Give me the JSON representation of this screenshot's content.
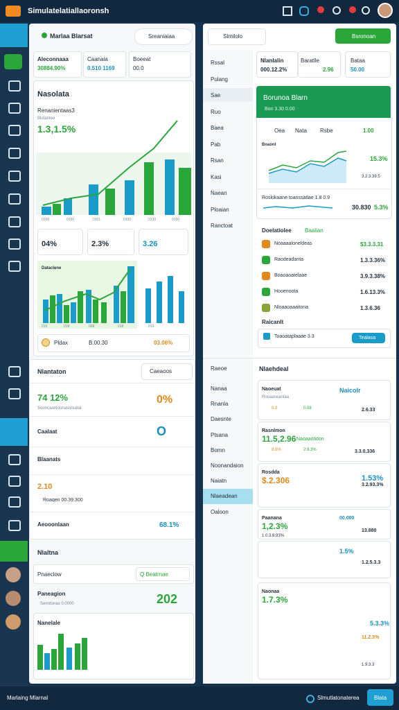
{
  "header": {
    "title": "Simulatelatiallaoronsh"
  },
  "left_panel": {
    "tab": "Marlaa Blarsat",
    "search": "Sreaniaiaa",
    "stats": [
      {
        "label": "Aleconnaaa",
        "value": "30884.90%"
      },
      {
        "label": "Caanaia",
        "value": "0.510 1169"
      },
      {
        "label": "Boeeat",
        "value": "00.0"
      }
    ],
    "chart_card": {
      "title": "Nasolata",
      "subtitle": "Renanientaas3",
      "note": "Blotantee",
      "value": "1.3,1.5%",
      "axis": [
        "0100",
        "0100",
        "0101",
        "0100",
        "0130",
        "0100"
      ]
    },
    "mini_stats": [
      "04%",
      "2.3%",
      "3.26"
    ],
    "combo_card": {
      "title": "Dataclene",
      "axis": [
        "010",
        "018",
        "008",
        "018",
        "019"
      ]
    },
    "ticker": {
      "label": "Pldax",
      "value": "B.00.30",
      "change": "03.06%"
    },
    "section": {
      "title": "Nlantaton",
      "select": "Caeaoos",
      "items": [
        {
          "title": "74 12%",
          "subtitle": "Sooncaantoonasoreatai",
          "badge": "0%"
        },
        {
          "title": "Caalaat",
          "badge": "O"
        },
        {
          "title": "Blaanats"
        },
        {
          "title": "2.10",
          "subtitle": "Roaqen 00.39.300"
        },
        {
          "title": "Aeooonlaan",
          "badge": "68.1%"
        }
      ]
    },
    "section2": {
      "title": "Nlaltna",
      "card_title": "Pnaeclow",
      "select": "Q Beatrnae",
      "row_title": "Paneagion",
      "row_subtitle": "Senntonas 0.0000",
      "row_value": "202",
      "chart_title": "Nanelale"
    }
  },
  "right_panel": {
    "search": "Slmilolo",
    "button": "Bsronoan",
    "nav": [
      "Rssal",
      "Pulang",
      "Sae",
      "Ruo",
      "Baea",
      "Pab",
      "Rsan",
      "Kasi",
      "Naean",
      "Ploaian",
      "Ranctoat"
    ],
    "stats": [
      {
        "label": "Nlanlalin",
        "value": "000.12.2%"
      },
      {
        "label": "Baratlle",
        "value": "2.96"
      },
      {
        "label": "Bataa",
        "value": "50.00"
      }
    ],
    "hero": {
      "title": "Borunoa Blarn",
      "subtitle": "Bon 3.30 0.00",
      "tabs": [
        "Oea",
        "Nata",
        "Rsbe"
      ],
      "tab_value": "1.00",
      "chart_title": "Boaonl",
      "chart_value": "15.3%",
      "chart_sub": "3.2.3.39.5",
      "legend": "Roslokaane toanssatlae 1.8 0.9",
      "total": "30.830",
      "total_change": "5.3%"
    },
    "list": {
      "title": "Doelatiolee",
      "tag": "Baalian",
      "rows": [
        {
          "label": "Noaaaaloneldeas",
          "value": "$3.3.3.31"
        },
        {
          "label": "Raodeadanta",
          "value": "1.3.3.36%"
        },
        {
          "label": "Boaoaoatelaae",
          "value": "3.9.3.38%"
        },
        {
          "label": "Hooenoota",
          "value": "1.6.13.3%"
        },
        {
          "label": "Nloaaoaaaitona",
          "value": "1.3.6.36"
        }
      ]
    },
    "action": {
      "title": "Raicanlt",
      "label": "Toaoataplaaae 3.3",
      "button": "Tealasa"
    },
    "nav2": {
      "title": "Raeoe",
      "items": [
        "Nanaa",
        "Rnanla",
        "Daesnte",
        "Ptsana",
        "Bomn",
        "Noonandaion",
        "Naiatn",
        "Nlaeadean",
        "Oaloon"
      ]
    },
    "section": {
      "title": "Nlaehdeal",
      "cards": [
        {
          "title": "Naoeuat",
          "subtitle": "Rooaaseantaa",
          "a": "0.3",
          "b": "0.08",
          "side": "Naicolr",
          "side_value": "2.6.33"
        },
        {
          "title": "Rasnlmon",
          "value": "11.5,2.96",
          "tag": "Naoaaotidon",
          "a": "8.0%",
          "b": "2.9.3%",
          "side_value": "3.3.0.336"
        },
        {
          "title": "Rosdda",
          "value": "$.2.306",
          "side_value": "1.53%",
          "side_sub": "3.2.93.3%"
        },
        {
          "title": "Paanana",
          "value": "1,2.3%",
          "sub": "1.0.3.8.93%",
          "side": "00.000",
          "side_sub": "13.880"
        },
        {
          "side": "1.5%",
          "side_sub": "1.2.5.3.3"
        },
        {
          "title": "Naonaa",
          "value": "1.7.3%",
          "side": "5.3.3%",
          "side_sub": "11.2.3%",
          "foot": "1.9.3.3"
        }
      ]
    }
  },
  "footer": {
    "left": "Marlaing Mlarnal",
    "right": "Slmutlatonaterea",
    "button": "Blata"
  }
}
